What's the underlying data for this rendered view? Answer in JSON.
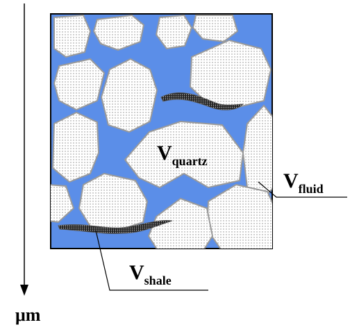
{
  "labels": {
    "quartz": {
      "symbol": "V",
      "subscript": "quartz"
    },
    "fluid": {
      "symbol": "V",
      "subscript": "fluid"
    },
    "shale": {
      "symbol": "V",
      "subscript": "shale"
    }
  },
  "axis_unit": "μm"
}
